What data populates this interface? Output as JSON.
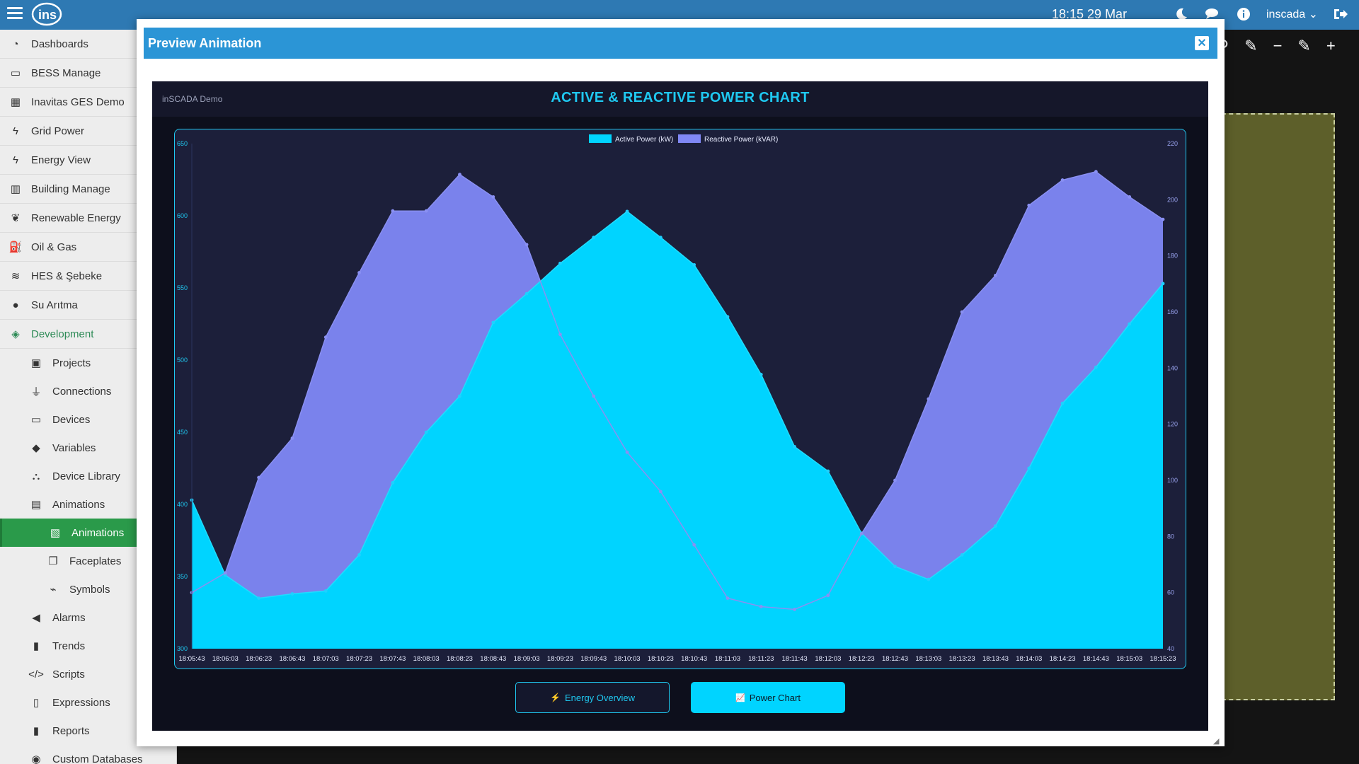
{
  "topbar": {
    "clock": "18:15  29 Mar",
    "user": "inscada",
    "icons": [
      "menu-icon",
      "moon-icon",
      "chat-icon",
      "info-icon",
      "logout-icon"
    ]
  },
  "sidebar": {
    "items": [
      {
        "label": "Dashboards",
        "icon": "dashboard-icon"
      },
      {
        "label": "BESS Manage",
        "icon": "battery-icon"
      },
      {
        "label": "Inavitas GES Demo",
        "icon": "solar-panel-icon"
      },
      {
        "label": "Grid Power",
        "icon": "bolt-icon"
      },
      {
        "label": "Energy View",
        "icon": "bolt-icon"
      },
      {
        "label": "Building Manage",
        "icon": "building-icon"
      },
      {
        "label": "Renewable Energy",
        "icon": "leaf-icon"
      },
      {
        "label": "Oil & Gas",
        "icon": "oil-icon"
      },
      {
        "label": "HES & Şebeke",
        "icon": "water-icon"
      },
      {
        "label": "Su Arıtma",
        "icon": "drop-icon"
      }
    ],
    "development": {
      "label": "Development",
      "icon": "layers-icon"
    },
    "dev_items": [
      {
        "label": "Projects",
        "icon": "briefcase-icon"
      },
      {
        "label": "Connections",
        "icon": "plug-icon"
      },
      {
        "label": "Devices",
        "icon": "monitor-icon"
      },
      {
        "label": "Variables",
        "icon": "tags-icon"
      },
      {
        "label": "Device Library",
        "icon": "sitemap-icon"
      },
      {
        "label": "Animations",
        "icon": "film-icon"
      }
    ],
    "anim_items": [
      {
        "label": "Animations",
        "icon": "images-icon",
        "active": true
      },
      {
        "label": "Faceplates",
        "icon": "clone-icon",
        "active": false
      },
      {
        "label": "Symbols",
        "icon": "helicopter-icon",
        "active": false
      }
    ],
    "dev_items_2": [
      {
        "label": "Alarms",
        "icon": "bullhorn-icon"
      },
      {
        "label": "Trends",
        "icon": "signal-icon"
      },
      {
        "label": "Scripts",
        "icon": "code-icon"
      },
      {
        "label": "Expressions",
        "icon": "file-code-icon"
      },
      {
        "label": "Reports",
        "icon": "file-icon"
      },
      {
        "label": "Custom Databases",
        "icon": "database-icon"
      }
    ]
  },
  "modal": {
    "title": "Preview Animation",
    "close_symbol": "✕"
  },
  "panel": {
    "demo_label": "inSCADA Demo",
    "title": "ACTIVE & REACTIVE POWER CHART"
  },
  "buttons": {
    "energy_overview": "Energy Overview",
    "energy_icon": "⚡",
    "power_chart": "Power Chart",
    "power_icon": "📈"
  },
  "colors": {
    "active": "#00d4ff",
    "reactive": "#8088f5",
    "accent": "#1fc8f0",
    "sidebar_active": "#2a9a4a"
  },
  "chart_data": {
    "type": "area",
    "title": "ACTIVE & REACTIVE POWER CHART",
    "x": [
      "18:05:43",
      "18:06:03",
      "18:06:23",
      "18:06:43",
      "18:07:03",
      "18:07:23",
      "18:07:43",
      "18:08:03",
      "18:08:23",
      "18:08:43",
      "18:09:03",
      "18:09:23",
      "18:09:43",
      "18:10:03",
      "18:10:23",
      "18:10:43",
      "18:11:03",
      "18:11:23",
      "18:11:43",
      "18:12:03",
      "18:12:23",
      "18:12:43",
      "18:13:03",
      "18:13:23",
      "18:13:43",
      "18:14:03",
      "18:14:23",
      "18:14:43",
      "18:15:03",
      "18:15:23"
    ],
    "series": [
      {
        "name": "Active Power (kW)",
        "axis": "left",
        "values": [
          403,
          351,
          335,
          338,
          340,
          365,
          415,
          450,
          475,
          526,
          546,
          567,
          585,
          603,
          585,
          566,
          530,
          490,
          440,
          423,
          380,
          357,
          348,
          365,
          385,
          425,
          470,
          495,
          525,
          553
        ]
      },
      {
        "name": "Reactive Power (kVAR)",
        "axis": "right",
        "values": [
          60,
          67,
          101,
          115,
          151,
          174,
          196,
          196,
          209,
          201,
          184,
          152,
          130,
          110,
          96,
          77,
          58,
          55,
          54,
          59,
          81,
          100,
          129,
          160,
          173,
          198,
          207,
          210,
          201,
          193
        ]
      }
    ],
    "y_left": {
      "min": 300,
      "max": 650,
      "ticks": [
        300,
        350,
        400,
        450,
        500,
        550,
        600,
        650
      ]
    },
    "y_right": {
      "min": 40,
      "max": 220,
      "ticks": [
        40,
        60,
        80,
        100,
        120,
        140,
        160,
        180,
        200,
        220
      ]
    },
    "legend": "top-center",
    "grid": false
  }
}
